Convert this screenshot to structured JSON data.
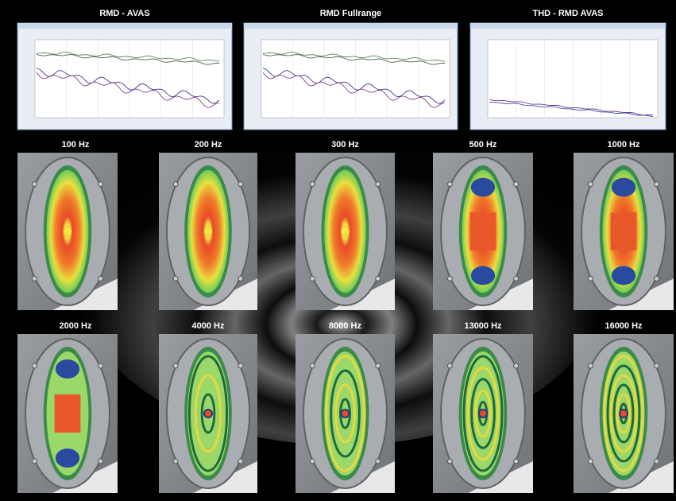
{
  "panels": [
    {
      "title": "RMD - AVAS"
    },
    {
      "title": "RMD Fullrange"
    },
    {
      "title": "THD - RMD AVAS"
    }
  ],
  "modes": [
    {
      "label": "100 Hz"
    },
    {
      "label": "200 Hz"
    },
    {
      "label": "300 Hz"
    },
    {
      "label": "500 Hz"
    },
    {
      "label": "1000 Hz"
    },
    {
      "label": "2000 Hz"
    },
    {
      "label": "4000 Hz"
    },
    {
      "label": "8000 Hz"
    },
    {
      "label": "13000 Hz"
    },
    {
      "label": "16000 Hz"
    }
  ]
}
